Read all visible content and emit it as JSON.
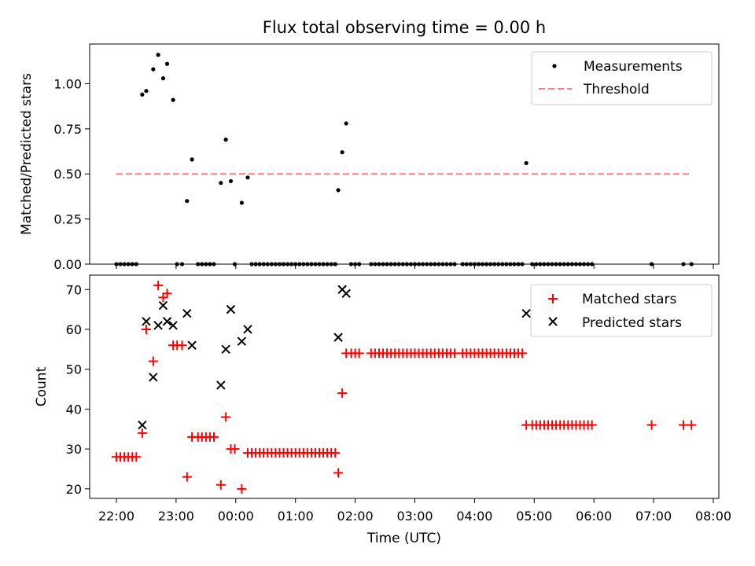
{
  "chart_data": [
    {
      "type": "scatter",
      "title": "Flux total observing time = 0.00 h",
      "xlabel": "",
      "ylabel": "Matched/Predicted stars",
      "ylim": [
        0,
        1.22
      ],
      "yticks": [
        "0.00",
        "0.25",
        "0.50",
        "0.75",
        "1.00"
      ],
      "yticks_values": [
        0,
        0.25,
        0.5,
        0.75,
        1.0
      ],
      "legend_position": "top-right",
      "series": [
        {
          "name": "Measurements",
          "marker": "dot",
          "color": "#000000",
          "points": [
            [
              "22:00",
              0
            ],
            [
              "22:04",
              0
            ],
            [
              "22:08",
              0
            ],
            [
              "22:12",
              0
            ],
            [
              "22:16",
              0
            ],
            [
              "22:20",
              0
            ],
            [
              "22:26",
              0.94
            ],
            [
              "22:30",
              0.96
            ],
            [
              "22:37",
              1.08
            ],
            [
              "22:42",
              1.16
            ],
            [
              "22:47",
              1.03
            ],
            [
              "22:51",
              1.11
            ],
            [
              "22:57",
              0.91
            ],
            [
              "23:01",
              0
            ],
            [
              "23:06",
              0
            ],
            [
              "23:11",
              0.35
            ],
            [
              "23:16",
              0.58
            ],
            [
              "23:22",
              0
            ],
            [
              "23:26",
              0
            ],
            [
              "23:30",
              0
            ],
            [
              "23:34",
              0
            ],
            [
              "23:38",
              0
            ],
            [
              "23:45",
              0.45
            ],
            [
              "23:50",
              0.69
            ],
            [
              "23:55",
              0.46
            ],
            [
              "23:59",
              0
            ],
            [
              "00:06",
              0.34
            ],
            [
              "00:12",
              0.48
            ],
            [
              "00:16",
              0
            ],
            [
              "00:20",
              0
            ],
            [
              "00:24",
              0
            ],
            [
              "00:28",
              0
            ],
            [
              "00:32",
              0
            ],
            [
              "00:36",
              0
            ],
            [
              "00:40",
              0
            ],
            [
              "00:44",
              0
            ],
            [
              "00:48",
              0
            ],
            [
              "00:52",
              0
            ],
            [
              "00:56",
              0
            ],
            [
              "01:00",
              0
            ],
            [
              "01:04",
              0
            ],
            [
              "01:08",
              0
            ],
            [
              "01:12",
              0
            ],
            [
              "01:16",
              0
            ],
            [
              "01:20",
              0
            ],
            [
              "01:24",
              0
            ],
            [
              "01:28",
              0
            ],
            [
              "01:32",
              0
            ],
            [
              "01:36",
              0
            ],
            [
              "01:40",
              0
            ],
            [
              "01:43",
              0.41
            ],
            [
              "01:47",
              0.62
            ],
            [
              "01:51",
              0.78
            ],
            [
              "01:56",
              0
            ],
            [
              "02:00",
              0
            ],
            [
              "02:04",
              0
            ],
            [
              "02:16",
              0
            ],
            [
              "02:20",
              0
            ],
            [
              "02:24",
              0
            ],
            [
              "02:28",
              0
            ],
            [
              "02:32",
              0
            ],
            [
              "02:36",
              0
            ],
            [
              "02:40",
              0
            ],
            [
              "02:44",
              0
            ],
            [
              "02:48",
              0
            ],
            [
              "02:52",
              0
            ],
            [
              "02:56",
              0
            ],
            [
              "03:00",
              0
            ],
            [
              "03:04",
              0
            ],
            [
              "03:08",
              0
            ],
            [
              "03:12",
              0
            ],
            [
              "03:16",
              0
            ],
            [
              "03:20",
              0
            ],
            [
              "03:24",
              0
            ],
            [
              "03:28",
              0
            ],
            [
              "03:32",
              0
            ],
            [
              "03:36",
              0
            ],
            [
              "03:40",
              0
            ],
            [
              "03:48",
              0
            ],
            [
              "03:52",
              0
            ],
            [
              "03:56",
              0
            ],
            [
              "04:00",
              0
            ],
            [
              "04:04",
              0
            ],
            [
              "04:08",
              0
            ],
            [
              "04:12",
              0
            ],
            [
              "04:16",
              0
            ],
            [
              "04:20",
              0
            ],
            [
              "04:24",
              0
            ],
            [
              "04:28",
              0
            ],
            [
              "04:32",
              0
            ],
            [
              "04:36",
              0
            ],
            [
              "04:40",
              0
            ],
            [
              "04:44",
              0
            ],
            [
              "04:48",
              0
            ],
            [
              "04:52",
              0.56
            ],
            [
              "04:58",
              0
            ],
            [
              "05:02",
              0
            ],
            [
              "05:06",
              0
            ],
            [
              "05:10",
              0
            ],
            [
              "05:14",
              0
            ],
            [
              "05:18",
              0
            ],
            [
              "05:22",
              0
            ],
            [
              "05:26",
              0
            ],
            [
              "05:30",
              0
            ],
            [
              "05:34",
              0
            ],
            [
              "05:38",
              0
            ],
            [
              "05:42",
              0
            ],
            [
              "05:46",
              0
            ],
            [
              "05:50",
              0
            ],
            [
              "05:54",
              0
            ],
            [
              "05:58",
              0
            ],
            [
              "06:58",
              0
            ],
            [
              "07:30",
              0
            ],
            [
              "07:38",
              0
            ]
          ]
        },
        {
          "name": "Threshold",
          "marker": "dashed-line",
          "color": "#ff7f7f",
          "points": [
            [
              "22:00",
              0.5
            ],
            [
              "07:38",
              0.5
            ]
          ]
        }
      ]
    },
    {
      "type": "scatter",
      "title": "",
      "xlabel": "Time (UTC)",
      "ylabel": "Count",
      "ylim": [
        17.6,
        73.6
      ],
      "yticks": [
        "20",
        "30",
        "40",
        "50",
        "60",
        "70"
      ],
      "yticks_values": [
        20,
        30,
        40,
        50,
        60,
        70
      ],
      "xticks": [
        "22:00",
        "23:00",
        "00:00",
        "01:00",
        "02:00",
        "03:00",
        "04:00",
        "05:00",
        "06:00",
        "07:00",
        "08:00"
      ],
      "legend_position": "top-right",
      "series": [
        {
          "name": "Matched stars",
          "marker": "plus",
          "color": "#ff0000",
          "points": [
            [
              "22:00",
              28
            ],
            [
              "22:04",
              28
            ],
            [
              "22:08",
              28
            ],
            [
              "22:12",
              28
            ],
            [
              "22:16",
              28
            ],
            [
              "22:20",
              28
            ],
            [
              "22:26",
              34
            ],
            [
              "22:30",
              60
            ],
            [
              "22:37",
              52
            ],
            [
              "22:42",
              71
            ],
            [
              "22:47",
              68
            ],
            [
              "22:51",
              69
            ],
            [
              "22:57",
              56
            ],
            [
              "23:01",
              56
            ],
            [
              "23:06",
              56
            ],
            [
              "23:11",
              23
            ],
            [
              "23:16",
              33
            ],
            [
              "23:22",
              33
            ],
            [
              "23:26",
              33
            ],
            [
              "23:30",
              33
            ],
            [
              "23:34",
              33
            ],
            [
              "23:38",
              33
            ],
            [
              "23:45",
              21
            ],
            [
              "23:50",
              38
            ],
            [
              "23:55",
              30
            ],
            [
              "23:59",
              30
            ],
            [
              "00:06",
              20
            ],
            [
              "00:12",
              29
            ],
            [
              "00:16",
              29
            ],
            [
              "00:20",
              29
            ],
            [
              "00:24",
              29
            ],
            [
              "00:28",
              29
            ],
            [
              "00:32",
              29
            ],
            [
              "00:36",
              29
            ],
            [
              "00:40",
              29
            ],
            [
              "00:44",
              29
            ],
            [
              "00:48",
              29
            ],
            [
              "00:52",
              29
            ],
            [
              "00:56",
              29
            ],
            [
              "01:00",
              29
            ],
            [
              "01:04",
              29
            ],
            [
              "01:08",
              29
            ],
            [
              "01:12",
              29
            ],
            [
              "01:16",
              29
            ],
            [
              "01:20",
              29
            ],
            [
              "01:24",
              29
            ],
            [
              "01:28",
              29
            ],
            [
              "01:32",
              29
            ],
            [
              "01:36",
              29
            ],
            [
              "01:40",
              29
            ],
            [
              "01:43",
              24
            ],
            [
              "01:47",
              44
            ],
            [
              "01:51",
              54
            ],
            [
              "01:56",
              54
            ],
            [
              "02:00",
              54
            ],
            [
              "02:04",
              54
            ],
            [
              "02:16",
              54
            ],
            [
              "02:20",
              54
            ],
            [
              "02:24",
              54
            ],
            [
              "02:28",
              54
            ],
            [
              "02:32",
              54
            ],
            [
              "02:36",
              54
            ],
            [
              "02:40",
              54
            ],
            [
              "02:44",
              54
            ],
            [
              "02:48",
              54
            ],
            [
              "02:52",
              54
            ],
            [
              "02:56",
              54
            ],
            [
              "03:00",
              54
            ],
            [
              "03:04",
              54
            ],
            [
              "03:08",
              54
            ],
            [
              "03:12",
              54
            ],
            [
              "03:16",
              54
            ],
            [
              "03:20",
              54
            ],
            [
              "03:24",
              54
            ],
            [
              "03:28",
              54
            ],
            [
              "03:32",
              54
            ],
            [
              "03:36",
              54
            ],
            [
              "03:40",
              54
            ],
            [
              "03:48",
              54
            ],
            [
              "03:52",
              54
            ],
            [
              "03:56",
              54
            ],
            [
              "04:00",
              54
            ],
            [
              "04:04",
              54
            ],
            [
              "04:08",
              54
            ],
            [
              "04:12",
              54
            ],
            [
              "04:16",
              54
            ],
            [
              "04:20",
              54
            ],
            [
              "04:24",
              54
            ],
            [
              "04:28",
              54
            ],
            [
              "04:32",
              54
            ],
            [
              "04:36",
              54
            ],
            [
              "04:40",
              54
            ],
            [
              "04:44",
              54
            ],
            [
              "04:48",
              54
            ],
            [
              "04:52",
              36
            ],
            [
              "04:58",
              36
            ],
            [
              "05:02",
              36
            ],
            [
              "05:06",
              36
            ],
            [
              "05:10",
              36
            ],
            [
              "05:14",
              36
            ],
            [
              "05:18",
              36
            ],
            [
              "05:22",
              36
            ],
            [
              "05:26",
              36
            ],
            [
              "05:30",
              36
            ],
            [
              "05:34",
              36
            ],
            [
              "05:38",
              36
            ],
            [
              "05:42",
              36
            ],
            [
              "05:46",
              36
            ],
            [
              "05:50",
              36
            ],
            [
              "05:54",
              36
            ],
            [
              "05:58",
              36
            ],
            [
              "06:58",
              36
            ],
            [
              "07:30",
              36
            ],
            [
              "07:38",
              36
            ]
          ]
        },
        {
          "name": "Predicted stars",
          "marker": "x",
          "color": "#000000",
          "points": [
            [
              "22:26",
              36
            ],
            [
              "22:30",
              62
            ],
            [
              "22:37",
              48
            ],
            [
              "22:42",
              61
            ],
            [
              "22:47",
              66
            ],
            [
              "22:51",
              62
            ],
            [
              "22:57",
              61
            ],
            [
              "23:11",
              64
            ],
            [
              "23:16",
              56
            ],
            [
              "23:45",
              46
            ],
            [
              "23:50",
              55
            ],
            [
              "23:55",
              65
            ],
            [
              "00:06",
              57
            ],
            [
              "00:12",
              60
            ],
            [
              "01:43",
              58
            ],
            [
              "01:47",
              70
            ],
            [
              "01:51",
              69
            ],
            [
              "04:52",
              64
            ]
          ]
        }
      ]
    }
  ]
}
